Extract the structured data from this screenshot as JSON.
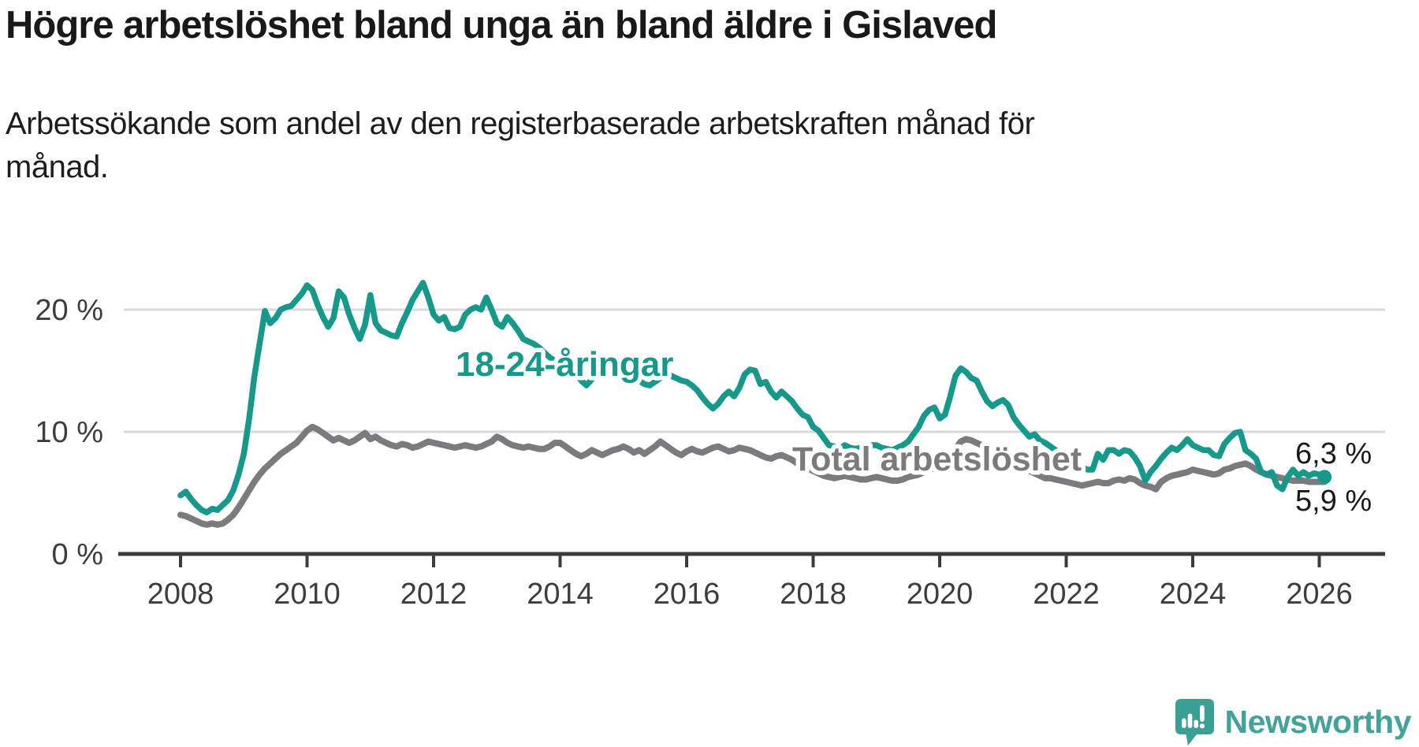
{
  "header": {
    "title": "Högre arbetslöshet bland unga än bland äldre i Gislaved",
    "subtitle_lines": [
      "Arbetssökande som andel av den registerbaserade arbetskraften månad för",
      "månad."
    ]
  },
  "footer": {
    "brand": "Newsworthy",
    "brand_color": "#42a39a",
    "logo_icon": "newsworthy-speech-bubble-bar-chart-icon"
  },
  "chart_data": {
    "type": "line",
    "title": "Högre arbetslöshet bland unga än bland äldre i Gislaved",
    "subtitle": "Arbetssökande som andel av den registerbaserade arbetskraften månad för månad.",
    "frequency": "monthly",
    "x_start_year": 2008,
    "x_start_month": 1,
    "x_end": "2026-02",
    "ylim": [
      0,
      23
    ],
    "grid": true,
    "colors": {
      "youth_line": "#16998a",
      "total_line": "#7b7b7e",
      "gridline": "#d9d9d9",
      "axis": "#3c3c3c",
      "axis_text": "#3d3d3d",
      "annotation_text": "#1a1a1a",
      "label_halo": "#ffffff"
    },
    "x_ticks": [
      {
        "year": 2008,
        "label": "2008"
      },
      {
        "year": 2010,
        "label": "2010"
      },
      {
        "year": 2012,
        "label": "2012"
      },
      {
        "year": 2014,
        "label": "2014"
      },
      {
        "year": 2016,
        "label": "2016"
      },
      {
        "year": 2018,
        "label": "2018"
      },
      {
        "year": 2020,
        "label": "2020"
      },
      {
        "year": 2022,
        "label": "2022"
      },
      {
        "year": 2024,
        "label": "2024"
      },
      {
        "year": 2026,
        "label": "2026"
      }
    ],
    "y_axis": {
      "ticks": [
        {
          "value": 0,
          "label": "0 %"
        },
        {
          "value": 10,
          "label": "10 %"
        },
        {
          "value": 20,
          "label": "20 %"
        }
      ]
    },
    "series": [
      {
        "name": "18-24-åringar",
        "color": "#16998a",
        "end_value_label": "6,3 %",
        "last_value": 6.3,
        "values": [
          4.8,
          5.1,
          4.5,
          4.0,
          3.6,
          3.4,
          3.7,
          3.6,
          4.0,
          4.4,
          5.2,
          6.5,
          8.2,
          11.0,
          14.5,
          17.2,
          19.9,
          18.9,
          19.3,
          20.0,
          20.2,
          20.3,
          20.8,
          21.3,
          22.0,
          21.6,
          20.4,
          19.4,
          18.6,
          19.3,
          21.5,
          21.0,
          19.6,
          18.5,
          17.6,
          18.8,
          21.2,
          18.9,
          18.3,
          18.1,
          17.9,
          17.8,
          18.9,
          19.8,
          20.8,
          21.5,
          22.2,
          21.0,
          19.6,
          19.1,
          19.4,
          18.5,
          18.4,
          18.6,
          19.6,
          20.0,
          20.2,
          20.0,
          21.0,
          20.0,
          18.9,
          18.6,
          19.4,
          18.9,
          18.3,
          17.6,
          17.4,
          17.2,
          16.9,
          16.5,
          16.1,
          15.8,
          15.6,
          15.4,
          15.1,
          14.7,
          14.2,
          13.8,
          14.3,
          14.7,
          15.0,
          15.2,
          15.1,
          15.0,
          15.1,
          14.9,
          14.6,
          14.2,
          13.9,
          13.8,
          14.1,
          14.4,
          14.6,
          14.6,
          14.4,
          14.2,
          14.1,
          13.8,
          13.4,
          12.8,
          12.3,
          11.9,
          12.3,
          12.9,
          13.3,
          12.9,
          13.6,
          14.7,
          15.1,
          15.0,
          13.9,
          14.1,
          13.3,
          12.8,
          13.3,
          12.9,
          12.5,
          11.9,
          11.4,
          11.2,
          10.4,
          10.1,
          9.5,
          8.9,
          8.8,
          8.6,
          8.9,
          8.7,
          8.6,
          8.7,
          8.8,
          8.9,
          8.9,
          8.7,
          8.6,
          8.5,
          8.7,
          8.9,
          9.2,
          9.8,
          10.4,
          11.3,
          11.8,
          12.0,
          11.1,
          11.4,
          12.9,
          14.6,
          15.2,
          14.9,
          14.4,
          14.2,
          13.3,
          12.5,
          12.1,
          12.4,
          12.6,
          12.2,
          11.2,
          10.6,
          10.1,
          9.6,
          9.8,
          9.3,
          9.1,
          8.8,
          8.5,
          8.2,
          8.0,
          7.7,
          7.4,
          7.1,
          6.9,
          6.9,
          8.2,
          7.7,
          8.5,
          8.5,
          8.2,
          8.5,
          8.4,
          7.9,
          7.2,
          6.0,
          6.7,
          7.2,
          7.8,
          8.3,
          8.7,
          8.5,
          8.9,
          9.4,
          8.9,
          8.7,
          8.5,
          8.5,
          8.1,
          8.0,
          9.0,
          9.5,
          9.9,
          10.0,
          8.5,
          8.2,
          7.8,
          6.7,
          6.5,
          6.7,
          5.6,
          5.3,
          6.3,
          6.9,
          6.4,
          6.7,
          6.4,
          6.6,
          6.5,
          6.3
        ]
      },
      {
        "name": "Total arbetslöshet",
        "color": "#7b7b7e",
        "end_value_label": "5,9 %",
        "last_value": 5.9,
        "values": [
          3.2,
          3.1,
          2.9,
          2.7,
          2.5,
          2.4,
          2.5,
          2.4,
          2.5,
          2.8,
          3.2,
          3.8,
          4.5,
          5.2,
          5.9,
          6.5,
          7.0,
          7.4,
          7.8,
          8.2,
          8.5,
          8.8,
          9.1,
          9.6,
          10.1,
          10.4,
          10.2,
          9.9,
          9.6,
          9.3,
          9.5,
          9.3,
          9.1,
          9.3,
          9.6,
          9.9,
          9.4,
          9.6,
          9.3,
          9.1,
          8.9,
          8.8,
          9.0,
          8.9,
          8.7,
          8.8,
          9.0,
          9.2,
          9.1,
          9.0,
          8.9,
          8.8,
          8.7,
          8.8,
          8.9,
          8.8,
          8.7,
          8.8,
          9.0,
          9.2,
          9.6,
          9.4,
          9.1,
          8.9,
          8.8,
          8.7,
          8.8,
          8.7,
          8.6,
          8.6,
          8.8,
          9.1,
          9.1,
          8.8,
          8.5,
          8.2,
          8.0,
          8.2,
          8.5,
          8.3,
          8.1,
          8.3,
          8.5,
          8.6,
          8.8,
          8.6,
          8.3,
          8.5,
          8.2,
          8.5,
          8.8,
          9.2,
          8.9,
          8.6,
          8.3,
          8.1,
          8.4,
          8.6,
          8.4,
          8.3,
          8.5,
          8.7,
          8.8,
          8.6,
          8.4,
          8.5,
          8.7,
          8.6,
          8.5,
          8.3,
          8.1,
          7.9,
          7.8,
          8.0,
          8.1,
          7.9,
          7.7,
          7.4,
          7.2,
          7.0,
          6.8,
          6.6,
          6.4,
          6.3,
          6.2,
          6.3,
          6.4,
          6.3,
          6.2,
          6.1,
          6.1,
          6.2,
          6.3,
          6.2,
          6.1,
          6.0,
          6.0,
          6.1,
          6.3,
          6.4,
          6.5,
          6.7,
          6.9,
          7.0,
          7.1,
          7.2,
          7.6,
          8.6,
          9.2,
          9.4,
          9.3,
          9.1,
          8.9,
          8.6,
          8.3,
          8.1,
          8.2,
          8.1,
          7.8,
          7.4,
          7.1,
          6.8,
          6.6,
          6.4,
          6.2,
          6.2,
          6.1,
          6.0,
          5.9,
          5.8,
          5.7,
          5.6,
          5.7,
          5.8,
          5.9,
          5.8,
          5.8,
          6.0,
          6.1,
          6.0,
          6.2,
          6.1,
          5.8,
          5.6,
          5.5,
          5.3,
          5.9,
          6.2,
          6.4,
          6.5,
          6.6,
          6.7,
          6.9,
          6.8,
          6.7,
          6.6,
          6.5,
          6.6,
          6.9,
          7.0,
          7.2,
          7.3,
          7.4,
          7.2,
          6.9,
          6.7,
          6.5,
          6.4,
          6.3,
          6.2,
          6.1,
          6.0,
          6.0,
          6.0,
          5.9,
          5.9,
          5.9,
          5.9
        ]
      }
    ]
  }
}
